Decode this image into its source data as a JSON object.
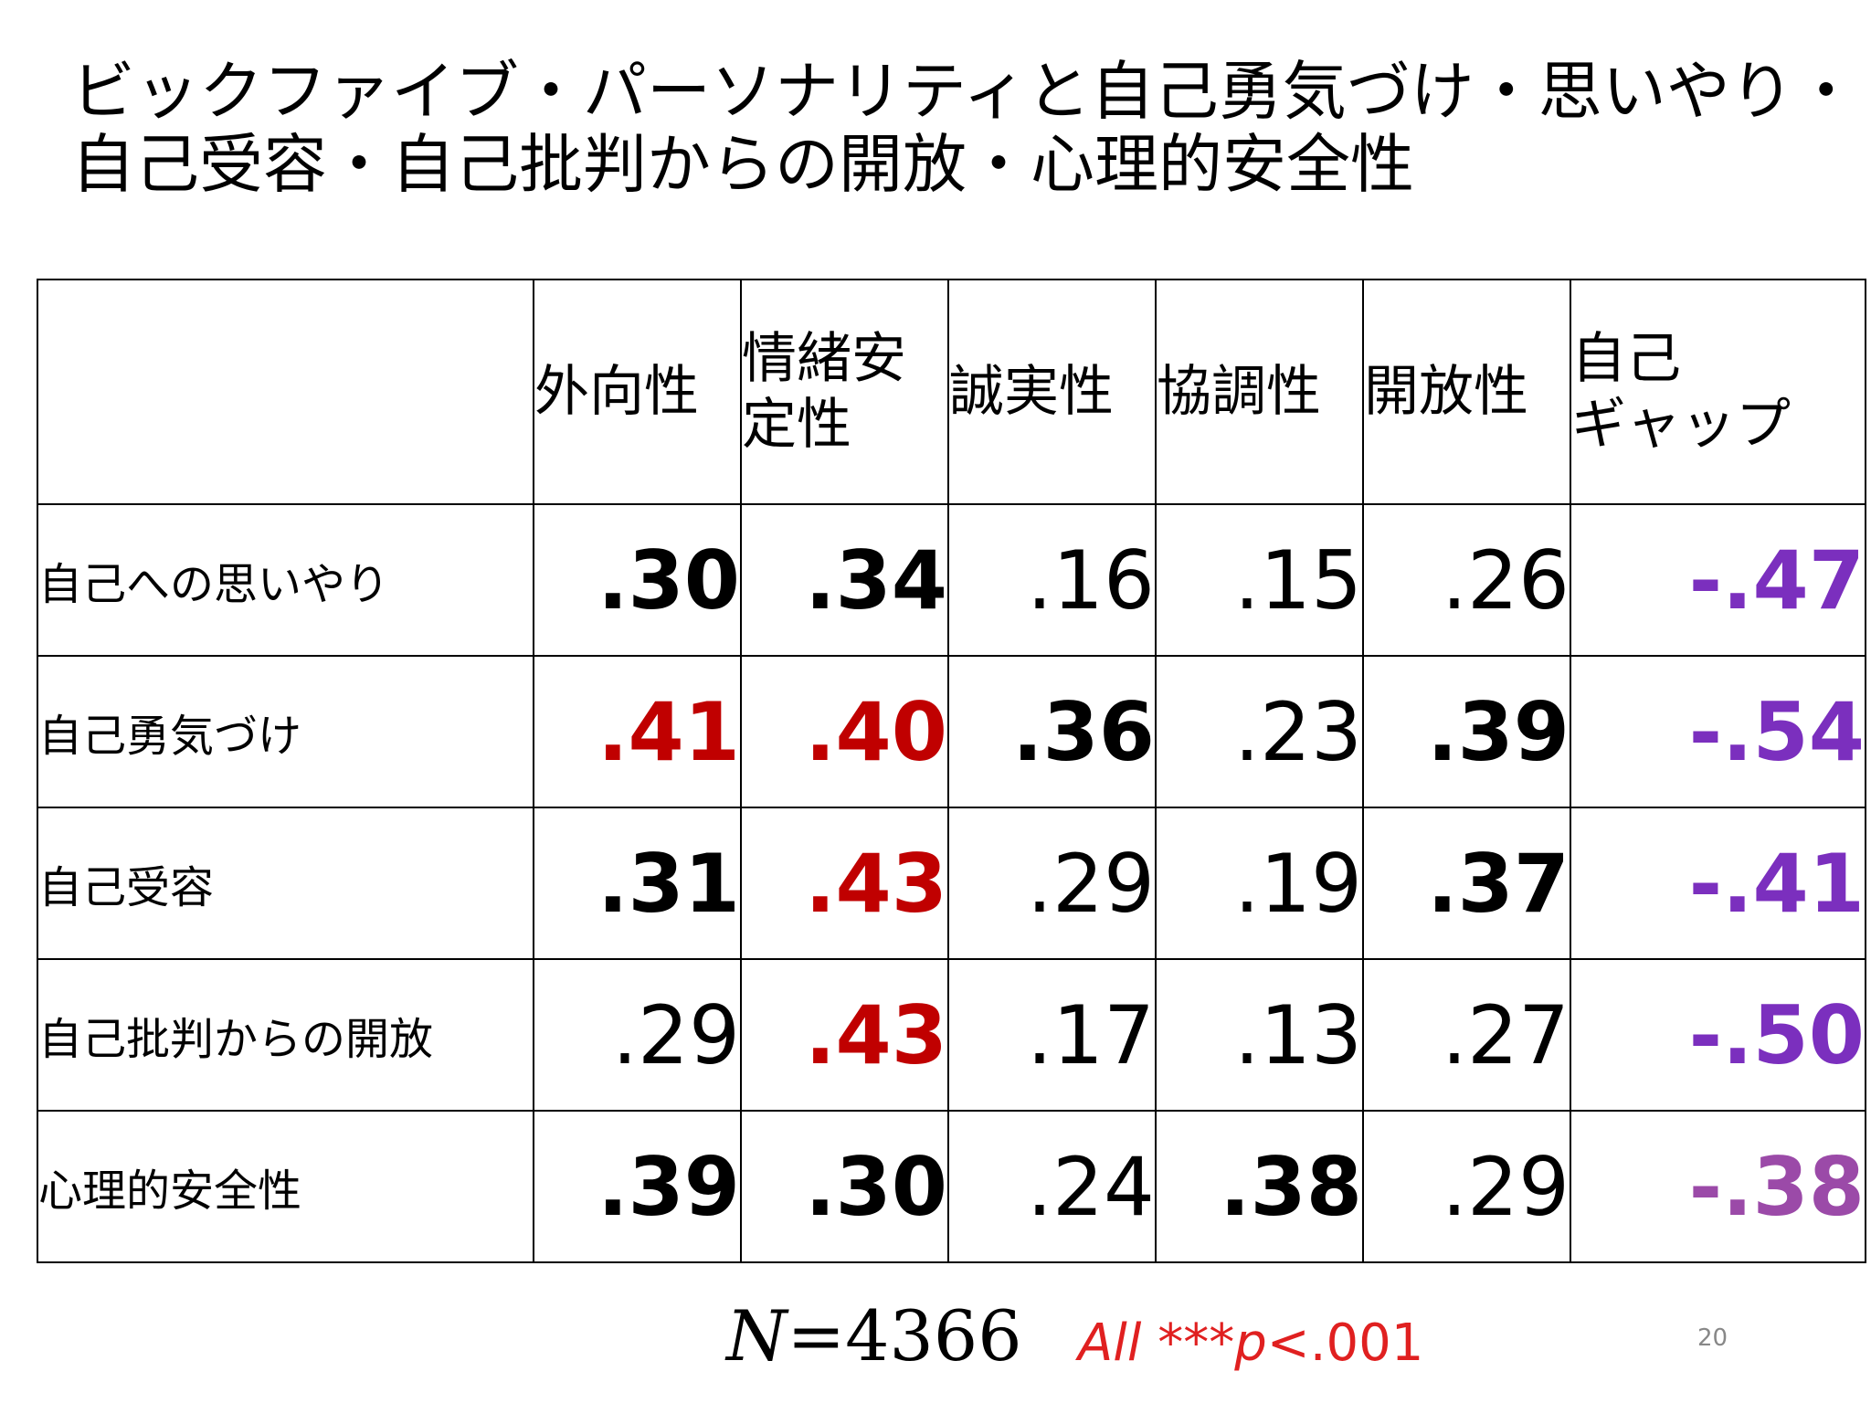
{
  "title": {
    "line1": "ビックファイブ・パーソナリティと自己勇気づけ・思いやり・",
    "line2": "自己受容・自己批判からの開放・心理的安全性"
  },
  "table": {
    "headers": [
      [
        "外向性"
      ],
      [
        "情緒安",
        "定性"
      ],
      [
        "誠実性"
      ],
      [
        "協調性"
      ],
      [
        "開放性"
      ],
      [
        "自己",
        "ギャップ"
      ]
    ],
    "rows": [
      {
        "label": "自己への思いやり",
        "values": [
          ".30",
          ".34",
          ".16",
          ".15",
          ".26",
          "-.47"
        ]
      },
      {
        "label": "自己勇気づけ",
        "values": [
          ".41",
          ".40",
          ".36",
          ".23",
          ".39",
          "-.54"
        ]
      },
      {
        "label": "自己受容",
        "values": [
          ".31",
          ".43",
          ".29",
          ".19",
          ".37",
          "-.41"
        ]
      },
      {
        "label": "自己批判からの開放",
        "values": [
          ".29",
          ".43",
          ".17",
          ".13",
          ".27",
          "-.50"
        ]
      },
      {
        "label": "心理的安全性",
        "values": [
          ".39",
          ".30",
          ".24",
          ".38",
          ".29",
          "-.38"
        ]
      }
    ]
  },
  "footer": {
    "n_label": "N",
    "n_value": "=4366",
    "p_all": "All",
    "p_stars": " ***",
    "p_italic": "p",
    "p_rest": "<.001"
  },
  "page_number": "20",
  "colors": {
    "highlight_red": "#c00000",
    "highlight_purple": "#7b2fbe",
    "footer_red": "#e02020"
  }
}
